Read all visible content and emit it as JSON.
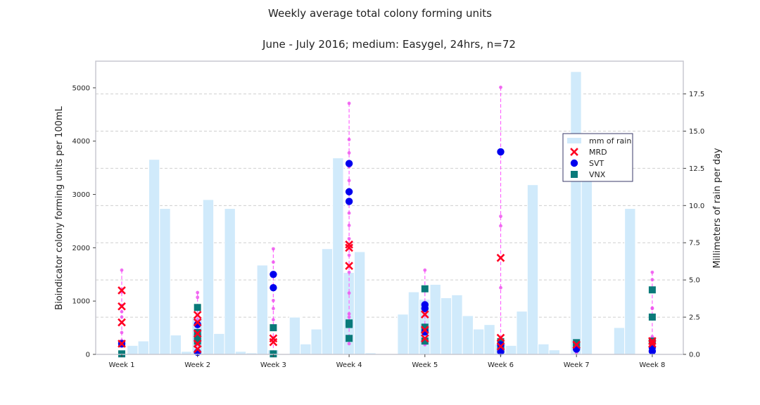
{
  "chart_data": {
    "type": "scatter",
    "title": "Weekly average total colony forming units",
    "subtitle": "June - July 2016; medium: Easygel, 24hrs, n=72",
    "ylabel": "Bioindicator colony forming units per 100mL",
    "y2label": "Millimeters of rain per day",
    "categories": [
      "Week 1",
      "Week 2",
      "Week 3",
      "Week 4",
      "Week 5",
      "Week 6",
      "Week 7",
      "Week 8"
    ],
    "ylim": [
      0,
      5500
    ],
    "y2lim": [
      0,
      19.7
    ],
    "yticks": [
      0,
      1000,
      2000,
      3000,
      4000,
      5000
    ],
    "y2ticks": [
      "0.0",
      "2.5",
      "5.0",
      "7.5",
      "10.0",
      "12.5",
      "15.0",
      "17.5"
    ],
    "grid": "horizontal dashed (right axis)",
    "legend_position": "center-right",
    "legend": [
      {
        "label": "mm of rain",
        "marker": "rect",
        "color": "#d0eafb"
      },
      {
        "label": "MRD",
        "marker": "x",
        "color": "#ff0022"
      },
      {
        "label": "SVT",
        "marker": "circle",
        "color": "#0000ee"
      },
      {
        "label": "VNX",
        "marker": "square",
        "color": "#0a7a7a"
      }
    ],
    "rain": {
      "name": "mm of rain",
      "color": "#d0eafb",
      "x_start": 0.0,
      "x_step": 0.1427,
      "values": [
        0,
        0.6,
        0.9,
        13.1,
        9.8,
        1.3,
        0.2,
        2.5,
        10.4,
        1.4,
        9.8,
        0.2,
        0.1,
        6.0,
        0.3,
        0,
        2.5,
        0.7,
        1.7,
        7.1,
        13.2,
        5.5,
        6.9,
        0.1,
        0,
        0,
        2.7,
        4.2,
        3.7,
        4.7,
        3.8,
        4.0,
        2.6,
        1.7,
        2.0,
        0.7,
        0.6,
        2.9,
        11.4,
        0.7,
        0.3,
        0,
        19.0,
        14.0,
        0,
        0,
        1.8,
        9.8
      ]
    },
    "range_lines": [
      {
        "x": 0,
        "min": 150,
        "max": 1580,
        "points": [
          1580,
          1220,
          1170,
          920,
          800,
          700,
          410,
          260,
          150
        ]
      },
      {
        "x": 1,
        "min": 50,
        "max": 1160,
        "points": [
          1160,
          1070,
          650,
          600,
          560,
          340,
          50
        ]
      },
      {
        "x": 2,
        "min": 30,
        "max": 1980,
        "points": [
          1980,
          1730,
          1500,
          1270,
          1010,
          860,
          650,
          310,
          30
        ]
      },
      {
        "x": 3,
        "min": 200,
        "max": 4710,
        "points": [
          4710,
          4030,
          3780,
          3520,
          3260,
          2650,
          2420,
          2170,
          1860,
          1540,
          1150,
          760,
          700,
          200
        ]
      },
      {
        "x": 4,
        "min": 180,
        "max": 1580,
        "points": [
          1580,
          1190,
          910,
          740,
          550,
          300,
          180
        ]
      },
      {
        "x": 5,
        "min": 30,
        "max": 5010,
        "points": [
          5010,
          2590,
          2410,
          1250,
          300,
          150,
          30
        ]
      },
      {
        "x": 6,
        "min": 30,
        "max": 230,
        "points": [
          230,
          200,
          150,
          100,
          30
        ]
      },
      {
        "x": 7,
        "min": 30,
        "max": 1540,
        "points": [
          1540,
          1400,
          870,
          860,
          330,
          100,
          30
        ]
      }
    ],
    "series": [
      {
        "name": "MRD",
        "marker": "x",
        "color": "#ff0022",
        "points": [
          [
            0,
            1200
          ],
          [
            0,
            900
          ],
          [
            0,
            600
          ],
          [
            0,
            200
          ],
          [
            1,
            740
          ],
          [
            1,
            600
          ],
          [
            1,
            390
          ],
          [
            1,
            200
          ],
          [
            1,
            100
          ],
          [
            2,
            300
          ],
          [
            2,
            230
          ],
          [
            3,
            2060
          ],
          [
            3,
            2000
          ],
          [
            3,
            1660
          ],
          [
            4,
            750
          ],
          [
            4,
            460
          ],
          [
            4,
            300
          ],
          [
            5,
            1810
          ],
          [
            5,
            310
          ],
          [
            5,
            150
          ],
          [
            6,
            180
          ],
          [
            7,
            250
          ],
          [
            7,
            200
          ]
        ]
      },
      {
        "name": "SVT",
        "marker": "circle",
        "color": "#0000ee",
        "points": [
          [
            0,
            200
          ],
          [
            1,
            560
          ],
          [
            1,
            40
          ],
          [
            2,
            1500
          ],
          [
            2,
            1250
          ],
          [
            3,
            3580
          ],
          [
            3,
            3050
          ],
          [
            3,
            2870
          ],
          [
            4,
            930
          ],
          [
            4,
            860
          ],
          [
            4,
            420
          ],
          [
            5,
            3800
          ],
          [
            5,
            180
          ],
          [
            5,
            50
          ],
          [
            6,
            100
          ],
          [
            7,
            130
          ],
          [
            7,
            60
          ]
        ]
      },
      {
        "name": "VNX",
        "marker": "square",
        "color": "#0a7a7a",
        "points": [
          [
            0,
            200
          ],
          [
            0,
            10
          ],
          [
            1,
            880
          ],
          [
            1,
            410
          ],
          [
            1,
            320
          ],
          [
            1,
            250
          ],
          [
            2,
            500
          ],
          [
            2,
            10
          ],
          [
            3,
            590
          ],
          [
            3,
            560
          ],
          [
            3,
            300
          ],
          [
            4,
            1230
          ],
          [
            4,
            510
          ],
          [
            4,
            460
          ],
          [
            4,
            250
          ],
          [
            5,
            240
          ],
          [
            5,
            110
          ],
          [
            6,
            220
          ],
          [
            6,
            180
          ],
          [
            7,
            1210
          ],
          [
            7,
            700
          ],
          [
            7,
            250
          ]
        ]
      }
    ]
  }
}
